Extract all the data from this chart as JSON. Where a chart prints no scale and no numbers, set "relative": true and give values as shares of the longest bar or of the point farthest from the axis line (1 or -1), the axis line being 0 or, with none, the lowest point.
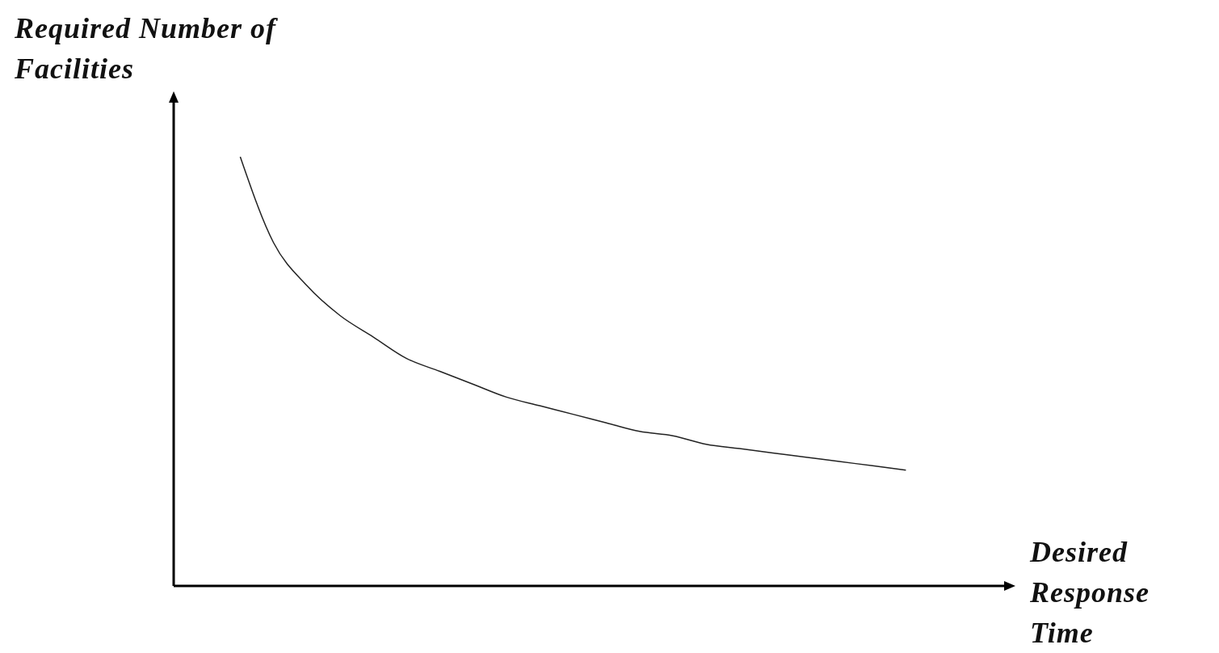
{
  "chart_data": {
    "type": "line",
    "relative": true,
    "xlabel": "Desired Response Time",
    "ylabel": "Required Number of Facilities",
    "marker": "none",
    "color": "#222222",
    "categories": [
      null,
      null,
      null,
      null,
      null,
      null,
      null,
      null,
      null,
      null,
      null,
      null,
      null,
      null,
      null,
      null,
      null,
      null,
      null,
      null,
      null,
      null,
      null,
      null,
      null,
      null
    ],
    "values": [
      null,
      null,
      1,
      0.8,
      0.7,
      0.63,
      0.58,
      0.53,
      0.5,
      0.47,
      0.44,
      0.42,
      0.4,
      0.38,
      0.36,
      0.35,
      0.33,
      0.32,
      0.31,
      0.3,
      0.29,
      0.28,
      0.27,
      null,
      null,
      null
    ]
  }
}
